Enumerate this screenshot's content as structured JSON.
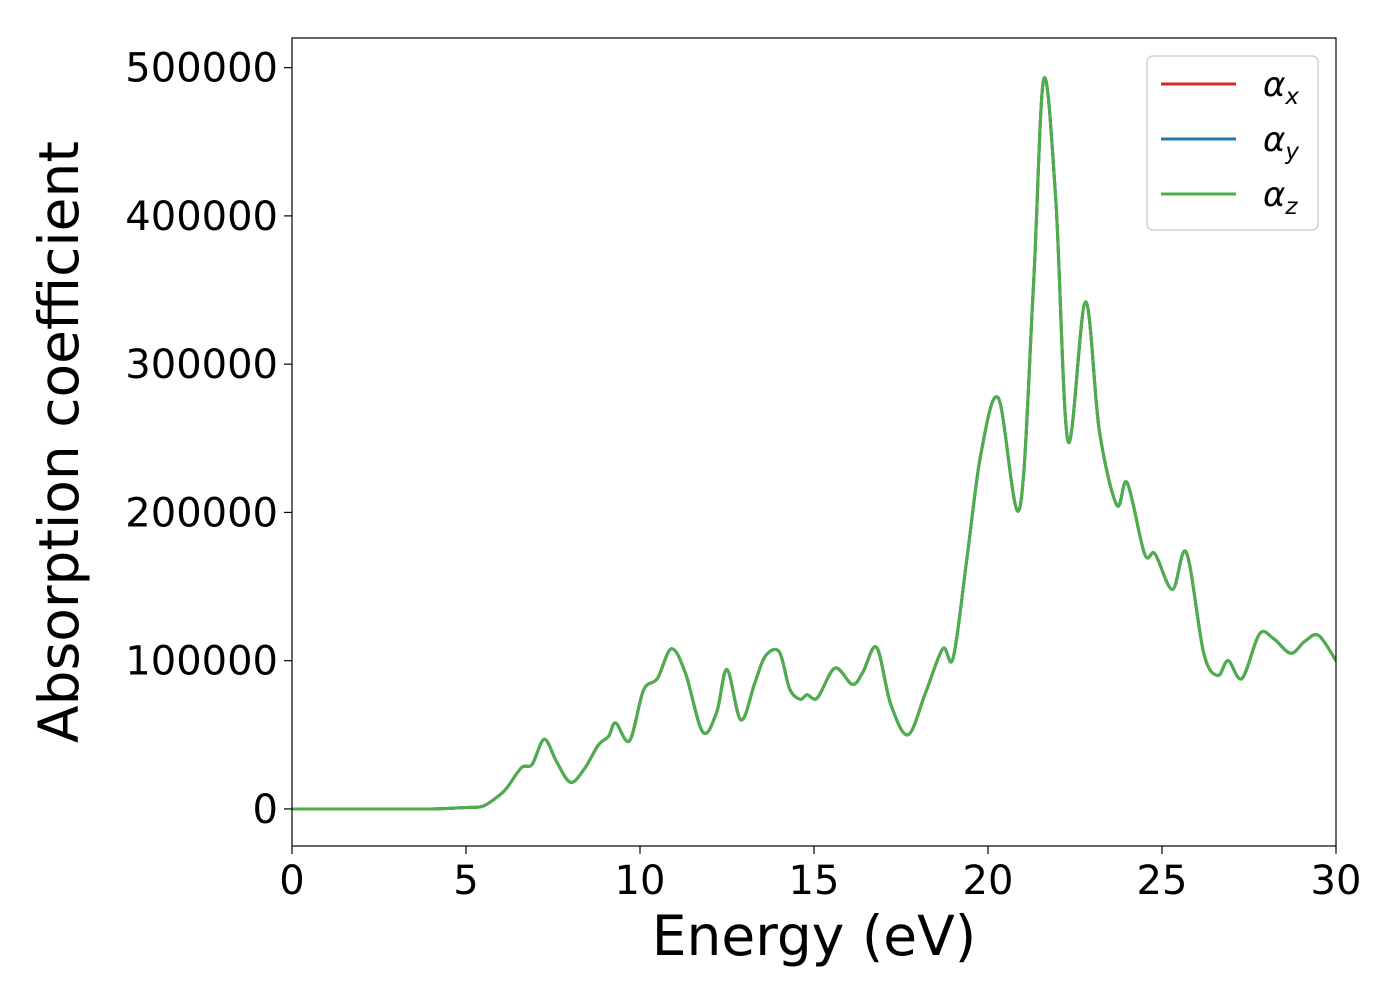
{
  "chart_data": {
    "type": "line",
    "xlabel": "Energy (eV)",
    "ylabel": "Absorption coefficient",
    "xlim": [
      0,
      30
    ],
    "ylim": [
      -25000,
      520000
    ],
    "xticks": [
      0,
      5,
      10,
      15,
      20,
      25,
      30
    ],
    "yticks": [
      0,
      100000,
      200000,
      300000,
      400000,
      500000
    ],
    "grid": false,
    "legend_position": "top-right",
    "series": [
      {
        "name": "α",
        "subscript": "x",
        "color": "#d62728",
        "values_ref": "shared"
      },
      {
        "name": "α",
        "subscript": "y",
        "color": "#1f77b4",
        "values_ref": "shared"
      },
      {
        "name": "α",
        "subscript": "z",
        "color": "#4daf4a",
        "values_ref": "shared"
      }
    ],
    "x": [
      0,
      1,
      2,
      3,
      4,
      5,
      5.5,
      6.0,
      6.2,
      6.6,
      6.9,
      7.25,
      7.6,
      8.0,
      8.4,
      8.8,
      9.1,
      9.3,
      9.7,
      10.1,
      10.5,
      10.9,
      11.3,
      11.8,
      12.2,
      12.5,
      12.9,
      13.3,
      13.6,
      14.0,
      14.3,
      14.6,
      14.8,
      15.1,
      15.6,
      16.1,
      16.4,
      16.8,
      17.2,
      17.7,
      18.2,
      18.7,
      19.0,
      19.4,
      19.8,
      20.3,
      20.9,
      21.3,
      21.6,
      21.95,
      22.3,
      22.8,
      23.2,
      23.7,
      24.0,
      24.5,
      24.8,
      25.3,
      25.7,
      26.2,
      26.6,
      26.9,
      27.3,
      27.8,
      28.2,
      28.7,
      29.1,
      29.5,
      30.0
    ],
    "values": [
      0,
      0,
      0,
      0,
      0,
      1000,
      2000,
      10000,
      15000,
      28000,
      30000,
      47000,
      32000,
      18000,
      27000,
      43000,
      49000,
      58000,
      46000,
      80000,
      88000,
      108000,
      92000,
      52000,
      65000,
      94000,
      60000,
      85000,
      103000,
      106000,
      81000,
      74000,
      77000,
      75000,
      95000,
      84000,
      92000,
      109000,
      71000,
      50000,
      78000,
      108000,
      102000,
      170000,
      240000,
      277000,
      202000,
      350000,
      492000,
      410000,
      248000,
      342000,
      255000,
      205000,
      220000,
      172000,
      172000,
      148000,
      173000,
      105000,
      90000,
      100000,
      88000,
      118000,
      115000,
      105000,
      113000,
      117000,
      100000
    ],
    "shared_note": ""
  }
}
